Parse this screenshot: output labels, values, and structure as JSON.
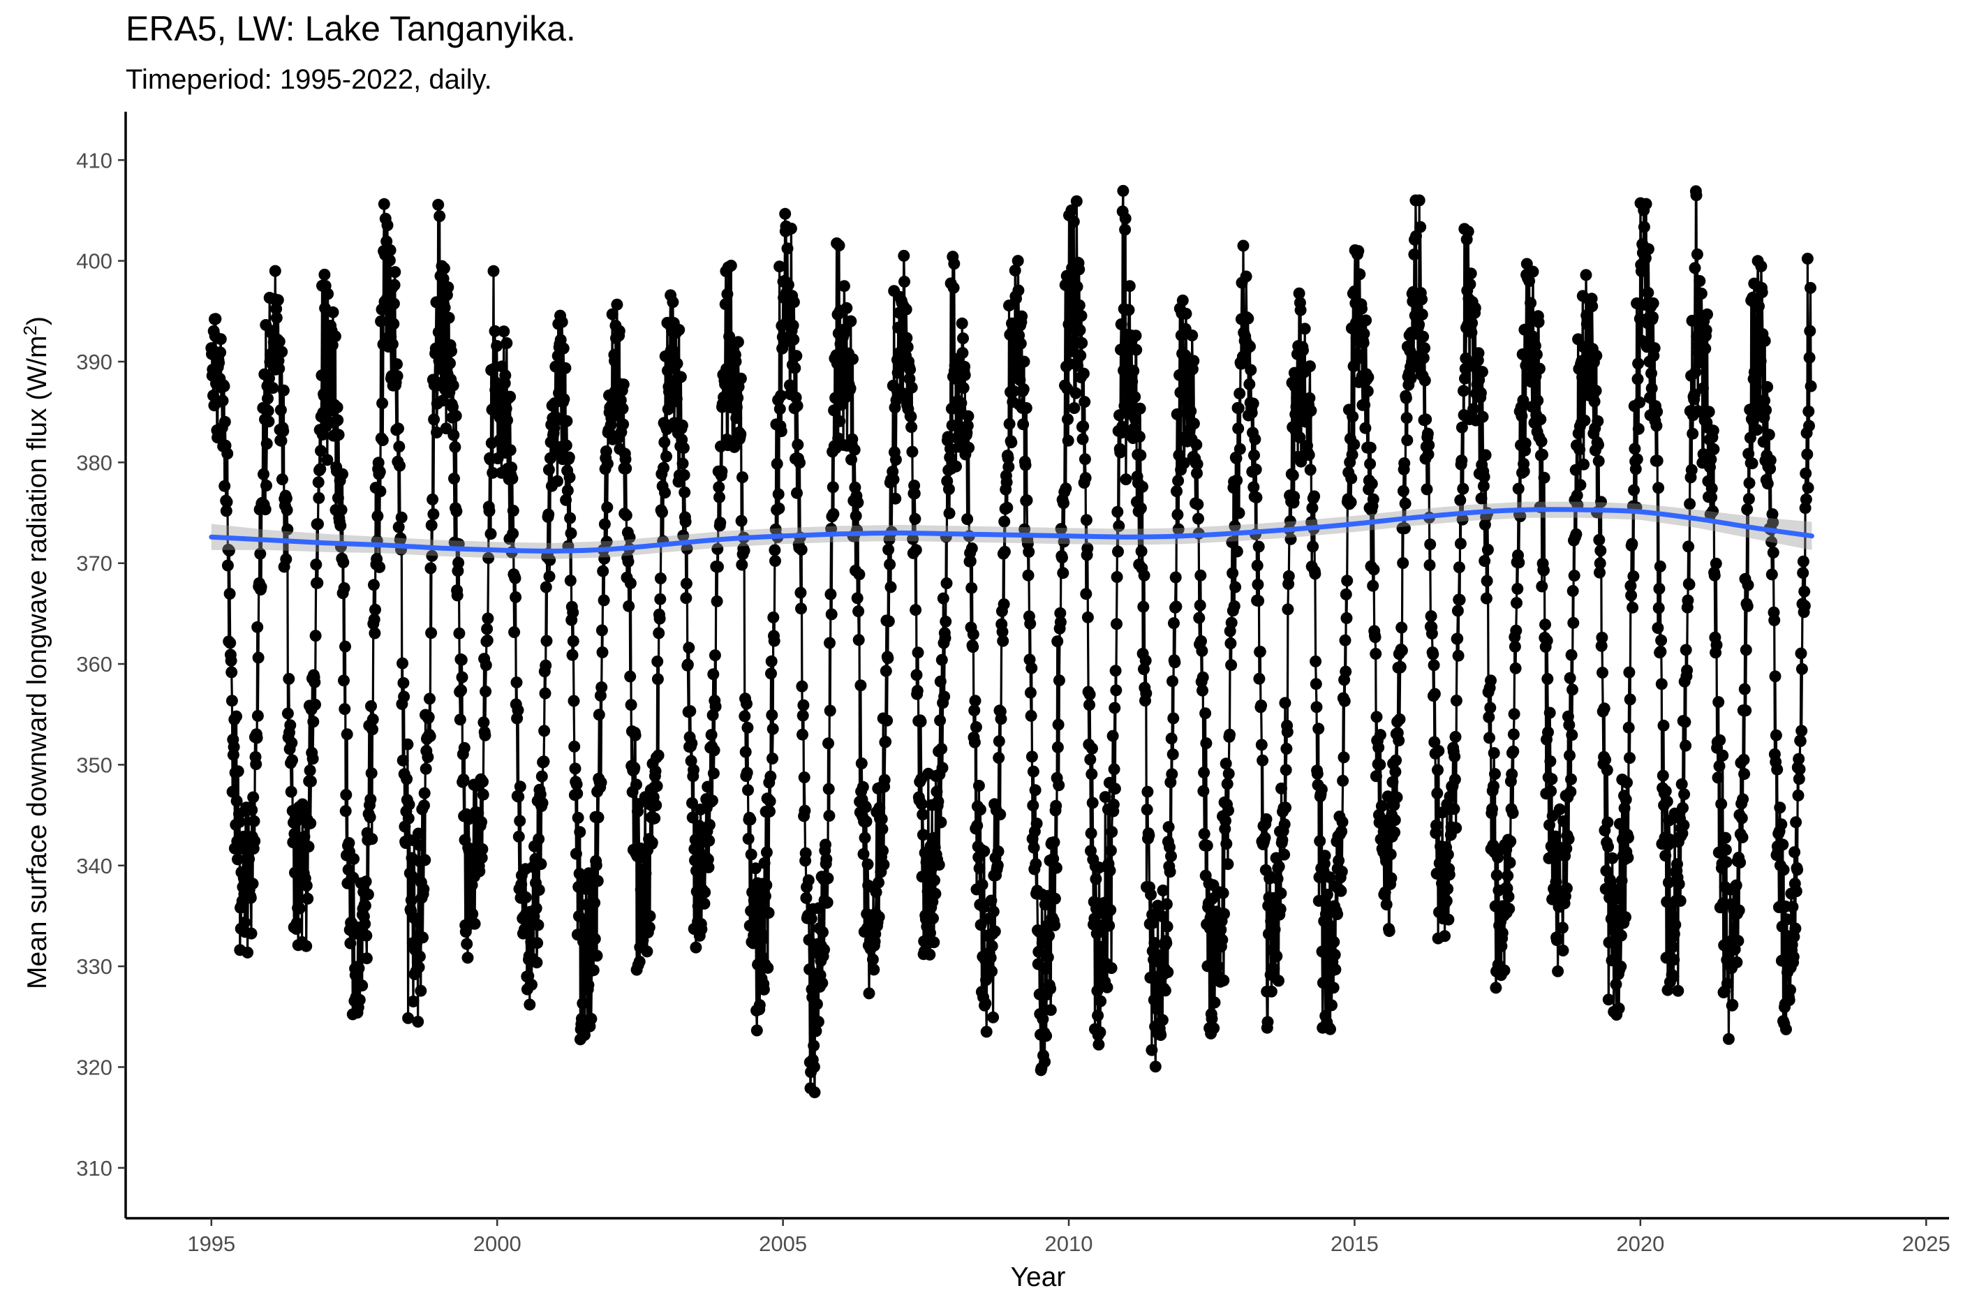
{
  "chart_data": {
    "type": "line",
    "title": "ERA5, LW: Lake Tanganyika.",
    "subtitle": "Timeperiod: 1995-2022, daily.",
    "xlabel": "Year",
    "ylabel_main": "Mean surface downward longwave radiation flux (W/m",
    "ylabel_sup": "2",
    "ylabel_end": ")",
    "xlim": [
      1993.5,
      2025.4
    ],
    "ylim": [
      305,
      414.8
    ],
    "x_ticks": [
      1995,
      2000,
      2005,
      2010,
      2015,
      2020,
      2025
    ],
    "y_ticks": [
      310,
      320,
      330,
      340,
      350,
      360,
      370,
      380,
      390,
      400,
      410
    ],
    "grid": false,
    "legend": "none",
    "colors": {
      "series": "#000000",
      "smooth": "#3366ff",
      "ribbon": "#999999"
    },
    "series": [
      {
        "style": "line+points",
        "x_start": 1995.0,
        "x_end": 2022.99,
        "seasonal_cycles": [
          {
            "year": 1995,
            "peak": 397,
            "trough": 330
          },
          {
            "year": 1996,
            "peak": 399,
            "trough": 332
          },
          {
            "year": 1997,
            "peak": 397,
            "trough": 321.5
          },
          {
            "year": 1998,
            "peak": 407,
            "trough": 324.5
          },
          {
            "year": 1999,
            "peak": 399.5,
            "trough": 330.5
          },
          {
            "year": 2000,
            "peak": 393,
            "trough": 325
          },
          {
            "year": 2001,
            "peak": 396.5,
            "trough": 322
          },
          {
            "year": 2002,
            "peak": 397,
            "trough": 329.5
          },
          {
            "year": 2003,
            "peak": 397.5,
            "trough": 331.5
          },
          {
            "year": 2004,
            "peak": 400,
            "trough": 323.5
          },
          {
            "year": 2005,
            "peak": 405,
            "trough": 317.5
          },
          {
            "year": 2006,
            "peak": 397.5,
            "trough": 326.5
          },
          {
            "year": 2007,
            "peak": 400.5,
            "trough": 331
          },
          {
            "year": 2008,
            "peak": 396.5,
            "trough": 323.5
          },
          {
            "year": 2009,
            "peak": 400,
            "trough": 318.5
          },
          {
            "year": 2010,
            "peak": 407,
            "trough": 321.5
          },
          {
            "year": 2011,
            "peak": 398,
            "trough": 318
          },
          {
            "year": 2012,
            "peak": 395.5,
            "trough": 323
          },
          {
            "year": 2013,
            "peak": 401.5,
            "trough": 323.5
          },
          {
            "year": 2014,
            "peak": 397.5,
            "trough": 322
          },
          {
            "year": 2015,
            "peak": 402,
            "trough": 333.5
          },
          {
            "year": 2016,
            "peak": 406,
            "trough": 331
          },
          {
            "year": 2017,
            "peak": 399.5,
            "trough": 327.5
          },
          {
            "year": 2018,
            "peak": 400,
            "trough": 329.5
          },
          {
            "year": 2019,
            "peak": 399.5,
            "trough": 324
          },
          {
            "year": 2020,
            "peak": 408,
            "trough": 325.5
          },
          {
            "year": 2021,
            "peak": 399,
            "trough": 322
          },
          {
            "year": 2022,
            "peak": 402,
            "trough": 322.5
          }
        ]
      },
      {
        "style": "loess-smooth",
        "x": [
          1995,
          1996,
          1997,
          1998,
          1999,
          2000,
          2001,
          2002,
          2003,
          2004,
          2005,
          2006,
          2007,
          2008,
          2009,
          2010,
          2011,
          2012,
          2013,
          2014,
          2015,
          2016,
          2017,
          2018,
          2019,
          2020,
          2021,
          2022,
          2023
        ],
        "y": [
          372.6,
          372.3,
          372.0,
          371.8,
          371.5,
          371.3,
          371.2,
          371.4,
          371.9,
          372.4,
          372.7,
          372.9,
          373.0,
          372.9,
          372.8,
          372.7,
          372.6,
          372.7,
          373.0,
          373.4,
          373.9,
          374.5,
          375.0,
          375.3,
          375.3,
          375.1,
          374.4,
          373.5,
          372.7
        ],
        "se": [
          1.3,
          1.0,
          0.9,
          0.8,
          0.8,
          0.8,
          0.8,
          0.8,
          0.8,
          0.8,
          0.8,
          0.8,
          0.8,
          0.8,
          0.8,
          0.8,
          0.8,
          0.8,
          0.8,
          0.8,
          0.8,
          0.8,
          0.8,
          0.8,
          0.8,
          0.8,
          0.9,
          1.1,
          1.4
        ]
      }
    ]
  }
}
